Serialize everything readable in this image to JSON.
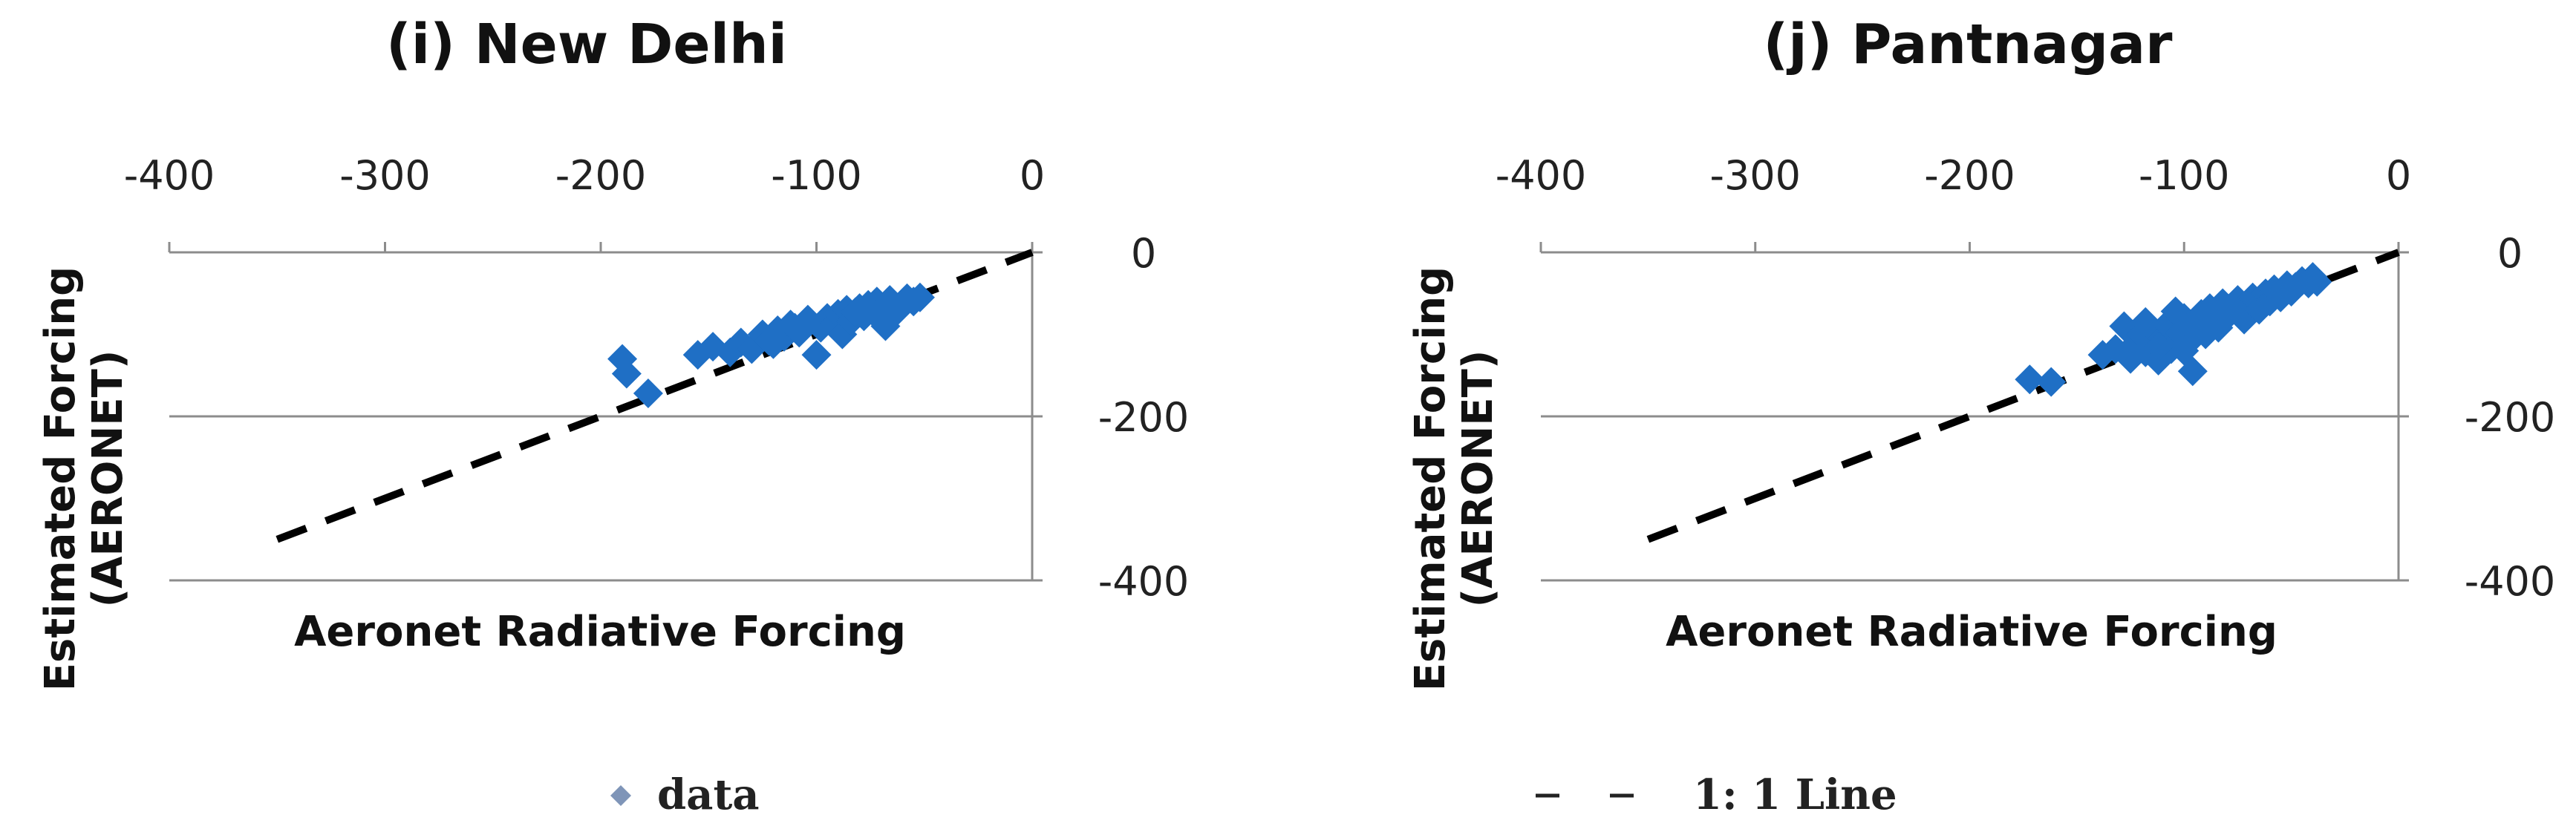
{
  "chart_data": [
    {
      "type": "scatter",
      "title": "(i) New Delhi",
      "xlabel": "Aeronet Radiative Forcing",
      "ylabel": "Estimated Forcing (AERONET)",
      "ylabel_lines": [
        "Estimated Forcing",
        "(AERONET)"
      ],
      "xlim": [
        -400,
        0
      ],
      "ylim": [
        -400,
        0
      ],
      "x_ticks": [
        -400,
        -300,
        -200,
        -100,
        0
      ],
      "x_tick_labels": [
        "-400",
        "-300",
        "-200",
        "-100",
        "0"
      ],
      "y_ticks": [
        0,
        -200,
        -400
      ],
      "y_tick_labels": [
        "0",
        "-200",
        "-400"
      ],
      "x_axis_position": "top",
      "y_axis_position": "right",
      "grid": "horizontal",
      "series": [
        {
          "name": "data",
          "marker": "diamond",
          "color": "#1f6fc5",
          "points": [
            [
              -190,
              -130
            ],
            [
              -188,
              -148
            ],
            [
              -178,
              -172
            ],
            [
              -155,
              -125
            ],
            [
              -148,
              -115
            ],
            [
              -140,
              -122
            ],
            [
              -135,
              -110
            ],
            [
              -130,
              -118
            ],
            [
              -125,
              -100
            ],
            [
              -122,
              -108
            ],
            [
              -118,
              -95
            ],
            [
              -115,
              -103
            ],
            [
              -112,
              -88
            ],
            [
              -108,
              -98
            ],
            [
              -104,
              -82
            ],
            [
              -100,
              -125
            ],
            [
              -98,
              -92
            ],
            [
              -95,
              -80
            ],
            [
              -92,
              -88
            ],
            [
              -90,
              -75
            ],
            [
              -88,
              -100
            ],
            [
              -86,
              -70
            ],
            [
              -84,
              -84
            ],
            [
              -82,
              -73
            ],
            [
              -80,
              -68
            ],
            [
              -78,
              -78
            ],
            [
              -76,
              -64
            ],
            [
              -74,
              -72
            ],
            [
              -72,
              -60
            ],
            [
              -70,
              -67
            ],
            [
              -68,
              -90
            ],
            [
              -66,
              -58
            ],
            [
              -64,
              -65
            ],
            [
              -62,
              -70
            ],
            [
              -60,
              -62
            ],
            [
              -58,
              -56
            ],
            [
              -55,
              -60
            ],
            [
              -52,
              -55
            ],
            [
              -110,
              -92
            ],
            [
              -120,
              -112
            ]
          ]
        },
        {
          "name": "1: 1 Line",
          "line_style": "dashed",
          "color": "#000000",
          "x": [
            -350,
            0
          ],
          "y": [
            -350,
            0
          ]
        }
      ]
    },
    {
      "type": "scatter",
      "title": "(j) Pantnagar",
      "xlabel": "Aeronet Radiative Forcing",
      "ylabel": "Estimated Forcing (AERONET)",
      "ylabel_lines": [
        "Estimated Forcing",
        "(AERONET)"
      ],
      "xlim": [
        -400,
        0
      ],
      "ylim": [
        -400,
        0
      ],
      "x_ticks": [
        -400,
        -300,
        -200,
        -100,
        0
      ],
      "x_tick_labels": [
        "-400",
        "-300",
        "-200",
        "-100",
        "0"
      ],
      "y_ticks": [
        0,
        -200,
        -400
      ],
      "y_tick_labels": [
        "0",
        "-200",
        "-400"
      ],
      "x_axis_position": "top",
      "y_axis_position": "right",
      "grid": "horizontal",
      "series": [
        {
          "name": "data",
          "marker": "diamond",
          "color": "#1f6fc5",
          "points": [
            [
              -172,
              -155
            ],
            [
              -162,
              -158
            ],
            [
              -138,
              -125
            ],
            [
              -132,
              -118
            ],
            [
              -128,
              -90
            ],
            [
              -125,
              -130
            ],
            [
              -122,
              -110
            ],
            [
              -120,
              -100
            ],
            [
              -118,
              -122
            ],
            [
              -115,
              -95
            ],
            [
              -112,
              -132
            ],
            [
              -110,
              -105
            ],
            [
              -108,
              -88
            ],
            [
              -106,
              -118
            ],
            [
              -104,
              -72
            ],
            [
              -102,
              -98
            ],
            [
              -100,
              -80
            ],
            [
              -98,
              -110
            ],
            [
              -96,
              -145
            ],
            [
              -95,
              -90
            ],
            [
              -92,
              -75
            ],
            [
              -90,
              -100
            ],
            [
              -88,
              -68
            ],
            [
              -86,
              -85
            ],
            [
              -84,
              -92
            ],
            [
              -82,
              -62
            ],
            [
              -80,
              -78
            ],
            [
              -78,
              -70
            ],
            [
              -75,
              -58
            ],
            [
              -72,
              -82
            ],
            [
              -70,
              -64
            ],
            [
              -68,
              -55
            ],
            [
              -65,
              -70
            ],
            [
              -62,
              -50
            ],
            [
              -60,
              -60
            ],
            [
              -58,
              -45
            ],
            [
              -55,
              -55
            ],
            [
              -52,
              -40
            ],
            [
              -50,
              -48
            ],
            [
              -48,
              -42
            ],
            [
              -45,
              -35
            ],
            [
              -42,
              -38
            ],
            [
              -40,
              -30
            ],
            [
              -38,
              -36
            ],
            [
              -112,
              -115
            ],
            [
              -118,
              -85
            ],
            [
              -100,
              -120
            ]
          ]
        },
        {
          "name": "1: 1 Line",
          "line_style": "dashed",
          "color": "#000000",
          "x": [
            -350,
            0
          ],
          "y": [
            -350,
            0
          ]
        }
      ]
    }
  ],
  "legend": {
    "placement": "bottom",
    "items": [
      {
        "label": "data",
        "marker": "diamond",
        "color": "#7f95b8"
      },
      {
        "label": "1: 1 Line",
        "marker": "dashed-line",
        "color": "#222222"
      }
    ]
  }
}
